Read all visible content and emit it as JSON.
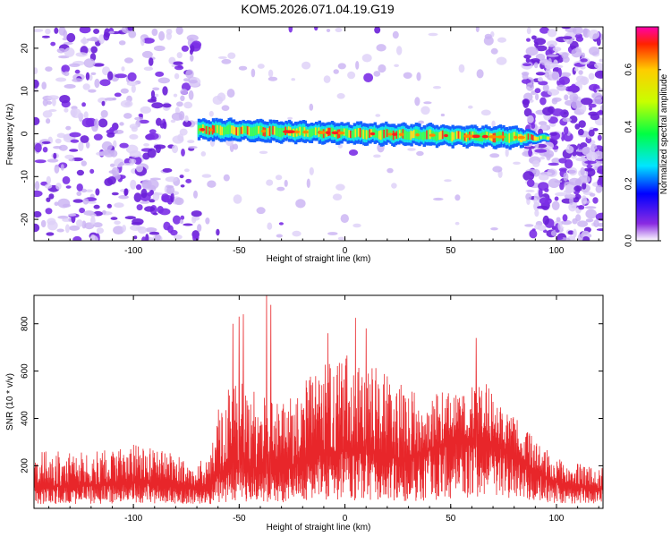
{
  "title": "KOM5.2026.071.04.19.G19",
  "chart_data": [
    {
      "type": "heatmap",
      "xlabel": "Height of straight line (km)",
      "ylabel": "Frequency (Hz)",
      "xlim": [
        -147,
        122
      ],
      "ylim": [
        -25,
        25
      ],
      "xticks": [
        -100,
        -50,
        0,
        50,
        100
      ],
      "yticks": [
        -20,
        -10,
        0,
        10,
        20
      ],
      "xtick_labels": [
        "-100",
        "-50",
        "0",
        "50",
        "100"
      ],
      "ytick_labels": [
        "-20",
        "-10",
        "0",
        "10",
        "20"
      ],
      "signal_band": {
        "x_start": -69,
        "x_end": 96,
        "freq_start": 1,
        "freq_end": -1,
        "halfwidth_hz": 2.2
      },
      "noise_regions": [
        {
          "x_start": -147,
          "x_end": -70,
          "density": "high"
        },
        {
          "x_start": -70,
          "x_end": 85,
          "density": "low"
        },
        {
          "x_start": 85,
          "x_end": 122,
          "density": "high"
        }
      ]
    },
    {
      "type": "line",
      "xlabel": "Height of straight line (km)",
      "ylabel": "SNR (10 * v/v)",
      "xlim": [
        -147,
        122
      ],
      "ylim": [
        20,
        920
      ],
      "xticks": [
        -100,
        -50,
        0,
        50,
        100
      ],
      "yticks": [
        200,
        400,
        600,
        800
      ],
      "xtick_labels": [
        "-100",
        "-50",
        "0",
        "50",
        "100"
      ],
      "ytick_labels": [
        "200",
        "400",
        "600",
        "800"
      ],
      "series": [
        {
          "name": "SNR",
          "color": "#e8262a",
          "envelope_x": [
            -147,
            -120,
            -100,
            -80,
            -70,
            -64,
            -60,
            -55,
            -50,
            -45,
            -40,
            -35,
            -30,
            -20,
            -10,
            0,
            10,
            20,
            30,
            40,
            50,
            60,
            65,
            70,
            80,
            90,
            100,
            110,
            122
          ],
          "envelope_base": [
            110,
            120,
            130,
            120,
            110,
            105,
            160,
            200,
            210,
            200,
            180,
            170,
            180,
            220,
            250,
            270,
            260,
            240,
            230,
            270,
            300,
            320,
            320,
            300,
            250,
            180,
            130,
            110,
            105
          ],
          "envelope_amp": [
            150,
            140,
            160,
            130,
            110,
            120,
            300,
            340,
            360,
            340,
            330,
            320,
            300,
            330,
            380,
            400,
            380,
            350,
            300,
            230,
            230,
            230,
            240,
            220,
            170,
            130,
            110,
            100,
            100
          ],
          "peaks": [
            {
              "x": -53,
              "y": 800
            },
            {
              "x": -50,
              "y": 830
            },
            {
              "x": -48,
              "y": 840
            },
            {
              "x": -37,
              "y": 920
            },
            {
              "x": -35,
              "y": 880
            },
            {
              "x": 5,
              "y": 825
            },
            {
              "x": 10,
              "y": 780
            },
            {
              "x": -8,
              "y": 760
            },
            {
              "x": 62,
              "y": 740
            }
          ]
        }
      ]
    }
  ],
  "colorbar": {
    "label": "Normalized spectral amplitude",
    "min": 0,
    "max": 0.75,
    "ticks": [
      0,
      0.2,
      0.4,
      0.6
    ],
    "tick_labels": [
      "0.0",
      "0.2",
      "0.4",
      "0.6"
    ]
  }
}
